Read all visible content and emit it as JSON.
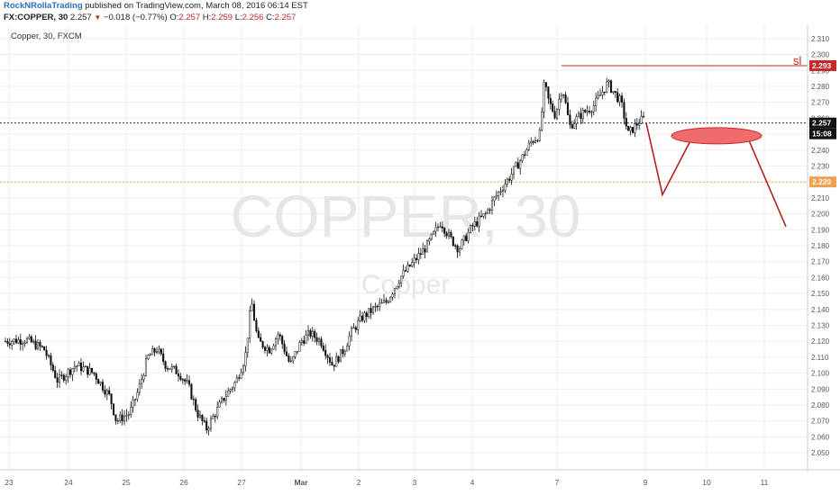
{
  "header": {
    "author": "RockNRollaTrading",
    "published": "published on TradingView.com, March 08, 2016 06:14 EST",
    "symbol": "FX:COPPER, 30",
    "last": "2.257",
    "change": "−0.018 (−0.77%)",
    "o_label": "O:",
    "o": "2.257",
    "h_label": "H:",
    "h": "2.259",
    "l_label": "L:",
    "l": "2.256",
    "c_label": "C:",
    "c": "2.257"
  },
  "chart_data": {
    "type": "candlestick",
    "legend": "Copper, 30, FXCM",
    "watermark": "COPPER, 30",
    "watermark_sub": "Copper",
    "x_ticks": [
      "23",
      "24",
      "25",
      "26",
      "27",
      "Mar",
      "2",
      "3",
      "4",
      "7",
      "9",
      "10",
      "11"
    ],
    "y_ticks": [
      "2.310",
      "2.300",
      "2.290",
      "2.280",
      "2.270",
      "2.260",
      "2.250",
      "2.240",
      "2.230",
      "2.220",
      "2.210",
      "2.200",
      "2.190",
      "2.180",
      "2.170",
      "2.160",
      "2.150",
      "2.140",
      "2.130",
      "2.120",
      "2.110",
      "2.100",
      "2.090",
      "2.080",
      "2.070",
      "2.060",
      "2.050"
    ],
    "ylim": [
      2.045,
      2.315
    ],
    "price_path": [
      [
        0,
        2.12
      ],
      [
        25,
        2.121
      ],
      [
        45,
        2.115
      ],
      [
        60,
        2.095
      ],
      [
        80,
        2.105
      ],
      [
        100,
        2.1
      ],
      [
        118,
        2.085
      ],
      [
        125,
        2.07
      ],
      [
        140,
        2.075
      ],
      [
        150,
        2.09
      ],
      [
        160,
        2.11
      ],
      [
        170,
        2.115
      ],
      [
        180,
        2.105
      ],
      [
        195,
        2.1
      ],
      [
        205,
        2.092
      ],
      [
        215,
        2.075
      ],
      [
        225,
        2.065
      ],
      [
        235,
        2.075
      ],
      [
        245,
        2.085
      ],
      [
        258,
        2.095
      ],
      [
        268,
        2.11
      ],
      [
        275,
        2.145
      ],
      [
        282,
        2.12
      ],
      [
        295,
        2.115
      ],
      [
        305,
        2.125
      ],
      [
        318,
        2.105
      ],
      [
        330,
        2.12
      ],
      [
        340,
        2.125
      ],
      [
        352,
        2.12
      ],
      [
        365,
        2.105
      ],
      [
        378,
        2.115
      ],
      [
        385,
        2.125
      ],
      [
        398,
        2.135
      ],
      [
        410,
        2.14
      ],
      [
        425,
        2.145
      ],
      [
        440,
        2.16
      ],
      [
        458,
        2.172
      ],
      [
        470,
        2.18
      ],
      [
        485,
        2.195
      ],
      [
        495,
        2.185
      ],
      [
        505,
        2.178
      ],
      [
        520,
        2.192
      ],
      [
        535,
        2.2
      ],
      [
        545,
        2.21
      ],
      [
        560,
        2.222
      ],
      [
        575,
        2.235
      ],
      [
        585,
        2.245
      ],
      [
        595,
        2.25
      ],
      [
        600,
        2.282
      ],
      [
        605,
        2.27
      ],
      [
        612,
        2.262
      ],
      [
        620,
        2.28
      ],
      [
        628,
        2.255
      ],
      [
        640,
        2.262
      ],
      [
        655,
        2.268
      ],
      [
        670,
        2.282
      ],
      [
        685,
        2.27
      ],
      [
        693,
        2.25
      ],
      [
        705,
        2.258
      ],
      [
        712,
        2.26
      ]
    ],
    "lines": [
      {
        "name": "current",
        "value": 2.257,
        "label": "2.257",
        "style": "dotted",
        "color": "#333333"
      },
      {
        "name": "support",
        "value": 2.22,
        "label": "2.220",
        "style": "dotted",
        "color": "#f0a050"
      },
      {
        "name": "stop-loss",
        "value": 2.293,
        "label": "2.293",
        "style": "solid",
        "color": "#c62828"
      }
    ],
    "sl_label": "sl",
    "time_badge": "15:08",
    "projection": [
      [
        717,
        2.257
      ],
      [
        735,
        2.212
      ],
      [
        768,
        2.248
      ],
      [
        828,
        2.25
      ],
      [
        872,
        2.192
      ]
    ],
    "zone": {
      "x": 795,
      "value": 2.249,
      "color": "#f06b6b"
    },
    "colors": {
      "up": "#111111",
      "down": "#111111",
      "projection": "#b22222",
      "grid": "#eeeeee"
    }
  }
}
